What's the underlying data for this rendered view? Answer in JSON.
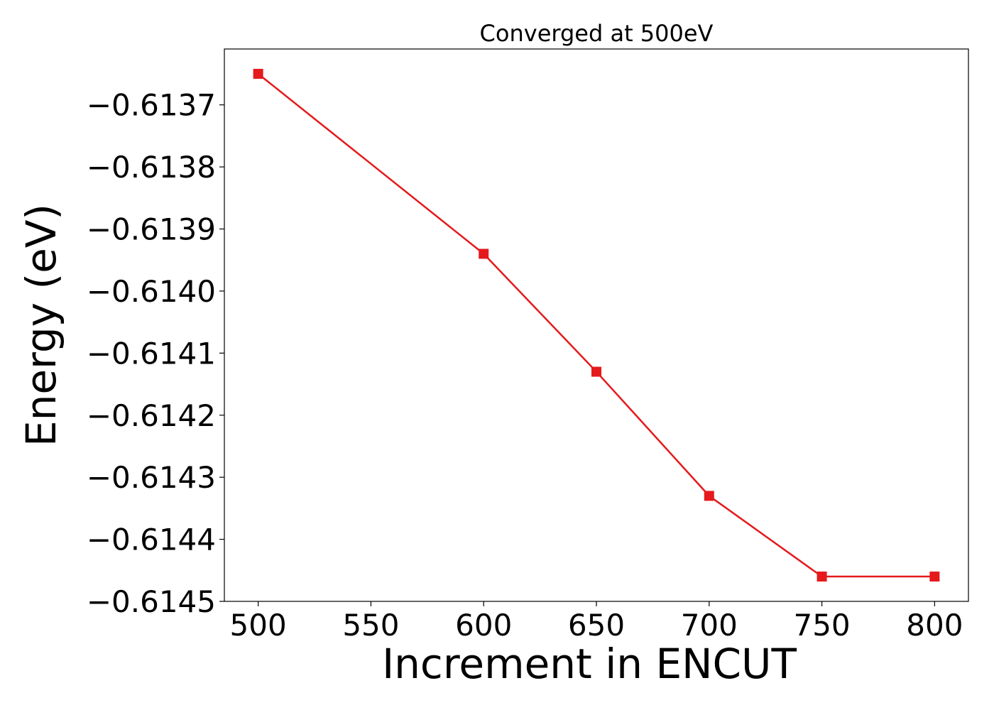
{
  "chart_data": {
    "type": "line",
    "title": "Converged at 500eV",
    "xlabel": "Increment in ENCUT",
    "ylabel": "Energy (eV)",
    "x": [
      500,
      600,
      650,
      700,
      750,
      800
    ],
    "series": [
      {
        "values": [
          -0.61365,
          -0.61394,
          -0.61413,
          -0.61433,
          -0.61446,
          -0.61446
        ],
        "color": "#e41a1c",
        "marker": "square"
      }
    ],
    "xlim": [
      485,
      815
    ],
    "ylim": [
      -0.6145,
      -0.61361
    ],
    "xticks": [
      500,
      550,
      600,
      650,
      700,
      750,
      800
    ],
    "xtick_labels": [
      "500",
      "550",
      "600",
      "650",
      "700",
      "750",
      "800"
    ],
    "yticks": [
      -0.6137,
      -0.6138,
      -0.6139,
      -0.614,
      -0.6141,
      -0.6142,
      -0.6143,
      -0.6144,
      -0.6145
    ],
    "ytick_labels": [
      "−0.6137",
      "−0.6138",
      "−0.6139",
      "−0.6140",
      "−0.6141",
      "−0.6142",
      "−0.6143",
      "−0.6144",
      "−0.6145"
    ],
    "grid": false,
    "legend": "none"
  }
}
